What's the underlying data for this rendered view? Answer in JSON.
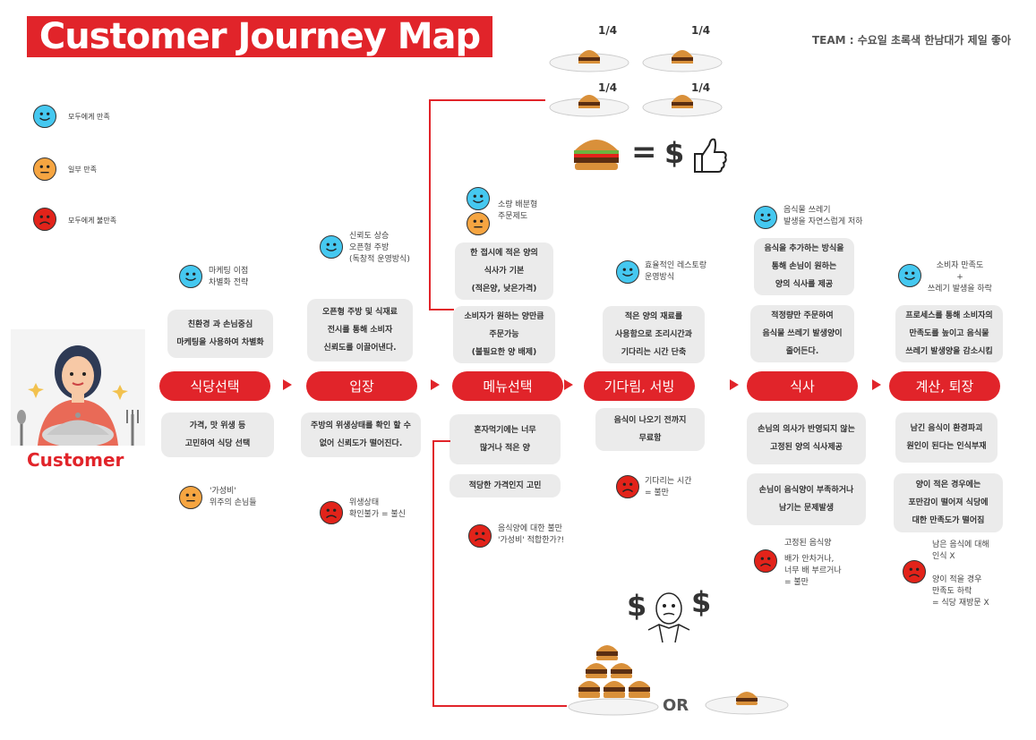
{
  "title": "Customer Journey Map",
  "team": "TEAM : 수요일 초록색 한남대가 제일 좋아",
  "legend": [
    {
      "text": "모두에게 만족",
      "color": "#45c8f0"
    },
    {
      "text": "일부 만족",
      "color": "#f6a541"
    },
    {
      "text": "모두에게 불만족",
      "color": "#e2231a"
    }
  ],
  "customer_label": "Customer",
  "stages": [
    "식당선택",
    "입장",
    "메뉴선택",
    "기다림, 서빙",
    "식사",
    "계산, 퇴장"
  ],
  "positives": {
    "s1_note": "마케팅 이점\n차별화 전략",
    "s1_box": "친환경 과 손님중심\n마케팅을 사용하여 차별화",
    "s2_note": "신뢰도 상승\n오픈형 주방\n(독창적 운영방식)",
    "s2_box": "오픈형 주방 및 식재료\n전시를 통해 소비자\n신뢰도를 이끌어낸다.",
    "s3_note": "소량 배분형\n주문제도",
    "s3_box1": "한 접시에 적은 양의\n식사가 기본\n(적은양, 낮은가격)",
    "s3_box2": "소비자가 원하는 양만큼\n주문가능\n(불필요한 양 배제)",
    "s4_note": "효율적인 레스토랑\n운영방식",
    "s4_box": "적은 양의 재료를\n사용함으로 조리시간과\n기다리는 시간 단축",
    "s5_note": "음식물 쓰레기\n발생을 자연스럽게 저하",
    "s5_box1": "음식을 추가하는 방식을\n통해 손님이 원하는\n양의 식사를 제공",
    "s5_box2": "적정량만 주문하여\n음식물 쓰레기 발생양이\n줄어든다.",
    "s6_note": "소비자 만족도\n+\n쓰레기 발생을 하락",
    "s6_box": "프로세스를 통해 소비자의\n만족도를 높이고 음식물\n쓰레기 발생양을 감소시킴"
  },
  "negatives": {
    "s1_box": "가격, 맛 위생 등\n고민하여 식당 선택",
    "s1_note": "'가성비'\n위주의 손님들",
    "s2_box": "주방의 위생상태를 확인 할 수\n없어 신뢰도가 떨어진다.",
    "s2_note": "위생상태\n확인불가 = 불신",
    "s3_box1": "혼자먹기에는 너무\n많거나 적은 양",
    "s3_box2": "적당한 가격인지 고민",
    "s3_note": "음식양에 대한 불만\n'가성비' 적합한가?!",
    "s4_box": "음식이 나오기 전까지\n무료함",
    "s4_note": "기다리는 시간\n= 불만",
    "s5_box1": "손님의 의사가 반영되지 않는\n고정된 양의 식사제공",
    "s5_box2": "손님이 음식양이 부족하거나\n남기는 문제발생",
    "s5_note_title": "고정된 음식양",
    "s5_note": "배가 안차거나,\n너무 배 부르거나\n= 불만",
    "s6_box1": "남긴 음식이 환경파괴\n원인이 된다는 인식부재",
    "s6_box2": "양이 적은 경우에는\n포만감이 떨어져 식당에\n대한 만족도가 떨어짐",
    "s6_note": "남은 음식에 대해\n인식 X\n\n양이 적을 경우\n만족도 하락\n= 식당 재방문 X"
  },
  "fractions": [
    "1/4",
    "1/4",
    "1/4",
    "1/4"
  ],
  "equation": {
    "equals": "=",
    "dollar": "$"
  },
  "bottom": {
    "or": "OR",
    "dollar": "$"
  },
  "colors": {
    "accent": "#e1242a",
    "box": "#ebebeb"
  }
}
